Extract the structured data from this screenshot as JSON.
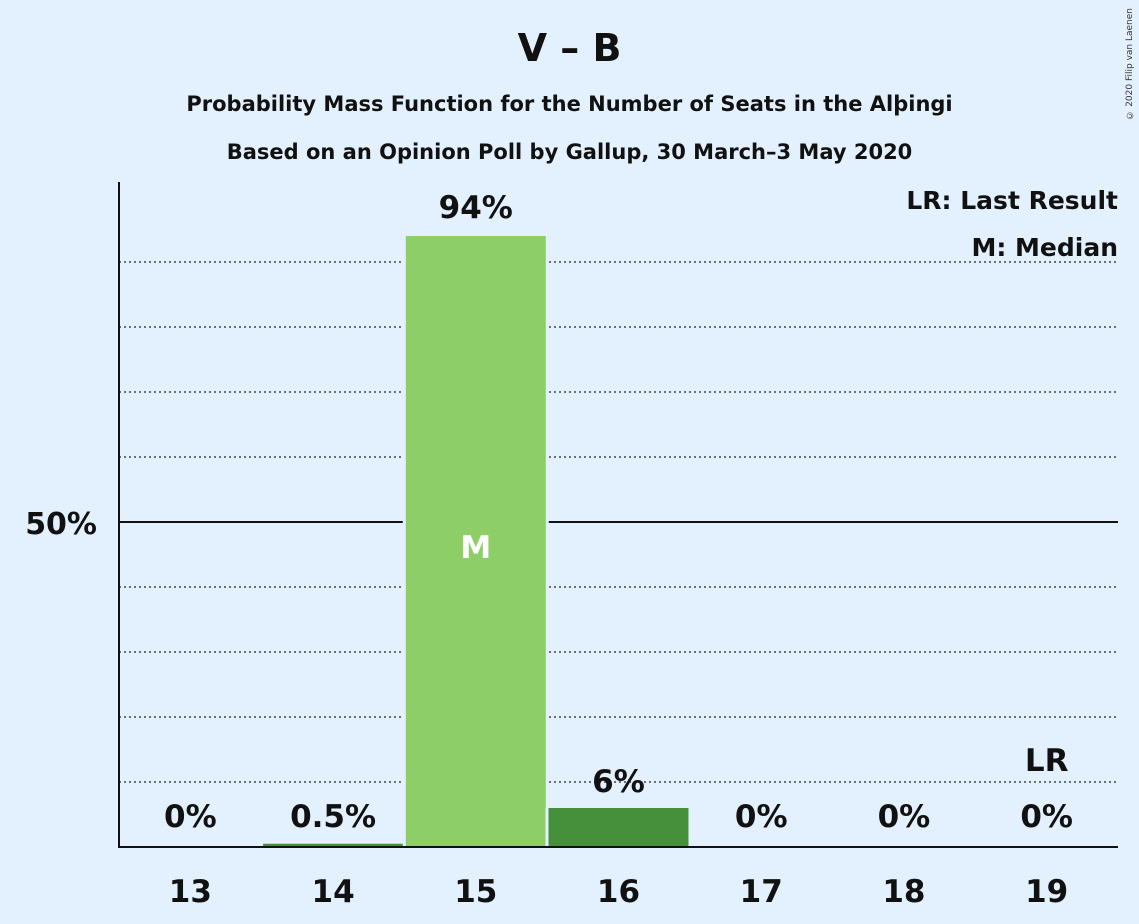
{
  "chart_data": {
    "type": "bar",
    "title": "V – B",
    "subtitle1": "Probability Mass Function for the Number of Seats in the Alþingi",
    "subtitle2": "Based on an Opinion Poll by Gallup, 30 March–3 May 2020",
    "categories": [
      "13",
      "14",
      "15",
      "16",
      "17",
      "18",
      "19"
    ],
    "values": [
      0,
      0.5,
      94,
      6,
      0,
      0,
      0
    ],
    "value_labels": [
      "0%",
      "0.5%",
      "94%",
      "6%",
      "0%",
      "0%",
      "0%"
    ],
    "bar_colors": [
      "#8dce66",
      "#468f3b",
      "#8dce66",
      "#468f3b",
      "#468f3b",
      "#468f3b",
      "#468f3b"
    ],
    "ylim": [
      0,
      100
    ],
    "y_ticks": [
      {
        "value": 50,
        "label": "50%"
      }
    ],
    "gridlines": [
      10,
      20,
      30,
      40,
      60,
      70,
      80,
      90
    ],
    "median_category": "15",
    "median_mark": "M",
    "last_result_category": "19",
    "last_result_mark": "LR",
    "legend": [
      "LR: Last Result",
      "M: Median"
    ],
    "legend_position": "top-right",
    "copyright": "© 2020 Filip van Laenen"
  }
}
